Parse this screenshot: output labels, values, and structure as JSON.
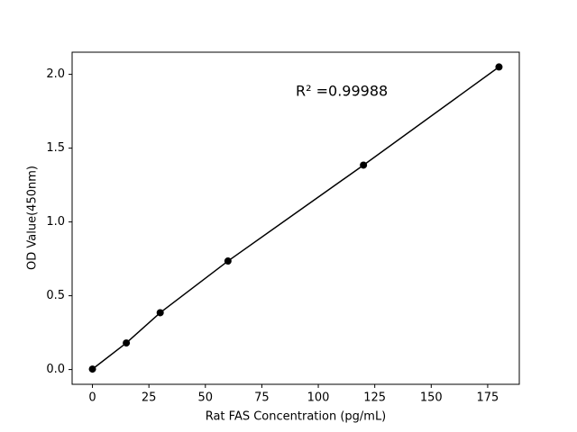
{
  "chart_data": {
    "type": "line",
    "x_label": "Rat FAS Concentration (pg/mL)",
    "y_label": "OD Value(450nm)",
    "annotation": "R² =0.99988",
    "x": [
      0,
      15,
      30,
      60,
      120,
      180
    ],
    "series": [
      {
        "name": "OD",
        "color": "#000000",
        "values": [
          0.003,
          0.18,
          0.385,
          0.735,
          1.385,
          2.05
        ]
      }
    ],
    "xlim": [
      -9,
      189
    ],
    "ylim": [
      -0.1,
      2.15
    ],
    "xticks": [
      0,
      25,
      50,
      75,
      100,
      125,
      150,
      175
    ],
    "yticks": [
      {
        "value": 0,
        "label": "0.0"
      },
      0.5,
      {
        "value": 1,
        "label": "1.0"
      },
      1.5,
      {
        "value": 2,
        "label": "2.0"
      }
    ],
    "grid": false
  }
}
